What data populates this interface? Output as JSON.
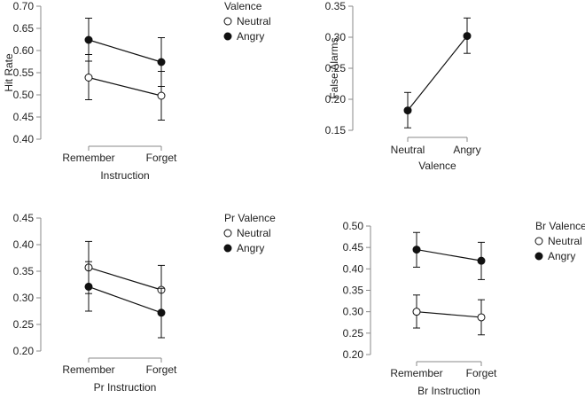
{
  "chart_data": [
    {
      "type": "line",
      "panel": "top-left",
      "xlabel": "Instruction",
      "ylabel": "Hit Rate",
      "categories": [
        "Remember",
        "Forget"
      ],
      "ylim": [
        0.4,
        0.7
      ],
      "yticks": [
        "0.40",
        "0.45",
        "0.50",
        "0.55",
        "0.60",
        "0.65",
        "0.70"
      ],
      "legend": {
        "title": "Valence",
        "position": "top-right"
      },
      "series": [
        {
          "name": "Neutral",
          "marker": "open",
          "values": [
            0.539,
            0.498
          ],
          "lower": [
            0.489,
            0.443
          ],
          "upper": [
            0.591,
            0.553
          ]
        },
        {
          "name": "Angry",
          "marker": "filled",
          "values": [
            0.624,
            0.574
          ],
          "lower": [
            0.576,
            0.519
          ],
          "upper": [
            0.673,
            0.629
          ]
        }
      ]
    },
    {
      "type": "line",
      "panel": "top-right",
      "xlabel": "Valence",
      "ylabel": "False Alarms",
      "categories": [
        "Neutral",
        "Angry"
      ],
      "ylim": [
        0.15,
        0.35
      ],
      "yticks": [
        "0.15",
        "0.20",
        "0.25",
        "0.30",
        "0.35"
      ],
      "series": [
        {
          "name": "False Alarms",
          "marker": "filled",
          "values": [
            0.182,
            0.302
          ],
          "lower": [
            0.154,
            0.274
          ],
          "upper": [
            0.211,
            0.331
          ]
        }
      ]
    },
    {
      "type": "line",
      "panel": "bottom-left",
      "xlabel": "Pr Instruction",
      "ylabel": "",
      "categories": [
        "Remember",
        "Forget"
      ],
      "ylim": [
        0.2,
        0.45
      ],
      "yticks": [
        "0.20",
        "0.25",
        "0.30",
        "0.35",
        "0.40",
        "0.45"
      ],
      "legend": {
        "title": "Pr Valence",
        "position": "top-right"
      },
      "series": [
        {
          "name": "Neutral",
          "marker": "open",
          "values": [
            0.357,
            0.315
          ],
          "lower": [
            0.308,
            0.27
          ],
          "upper": [
            0.406,
            0.361
          ]
        },
        {
          "name": "Angry",
          "marker": "filled",
          "values": [
            0.321,
            0.272
          ],
          "lower": [
            0.275,
            0.225
          ],
          "upper": [
            0.368,
            0.318
          ]
        }
      ]
    },
    {
      "type": "line",
      "panel": "bottom-right",
      "xlabel": "Br Instruction",
      "ylabel": "",
      "categories": [
        "Remember",
        "Forget"
      ],
      "ylim": [
        0.2,
        0.5
      ],
      "yticks": [
        "0.20",
        "0.25",
        "0.30",
        "0.35",
        "0.40",
        "0.45",
        "0.50"
      ],
      "legend": {
        "title": "Br Valence",
        "position": "top-right"
      },
      "series": [
        {
          "name": "Neutral",
          "marker": "open",
          "values": [
            0.3,
            0.287
          ],
          "lower": [
            0.262,
            0.246
          ],
          "upper": [
            0.339,
            0.328
          ]
        },
        {
          "name": "Angry",
          "marker": "filled",
          "values": [
            0.445,
            0.419
          ],
          "lower": [
            0.404,
            0.375
          ],
          "upper": [
            0.485,
            0.462
          ]
        }
      ]
    }
  ]
}
